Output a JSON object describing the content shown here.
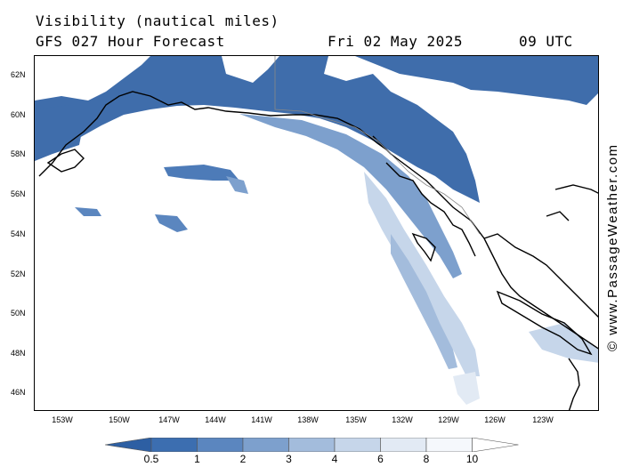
{
  "header": {
    "title": "Visibility (nautical miles)",
    "subtitle": "GFS 027 Hour Forecast",
    "date": "Fri 02 May 2025",
    "time": "09 UTC"
  },
  "map": {
    "latitude_labels": [
      "62N",
      "60N",
      "58N",
      "56N",
      "54N",
      "52N",
      "50N",
      "48N",
      "46N"
    ],
    "longitude_labels": [
      "153W",
      "150W",
      "147W",
      "144W",
      "141W",
      "138W",
      "135W",
      "132W",
      "129W",
      "126W",
      "123W"
    ],
    "land_outline_color": "#000000",
    "low_visibility_color": "#3c6aa8"
  },
  "legend": {
    "levels": [
      "0.5",
      "1",
      "2",
      "3",
      "4",
      "6",
      "8",
      "10"
    ],
    "colors": [
      "#2d5fa3",
      "#3c6eb0",
      "#5b86bf",
      "#7da0cd",
      "#a3bcdc",
      "#c6d6ea",
      "#e2eaf4",
      "#f5f8fc",
      "#ffffff"
    ]
  },
  "watermark": "© www.PassageWeather.com"
}
